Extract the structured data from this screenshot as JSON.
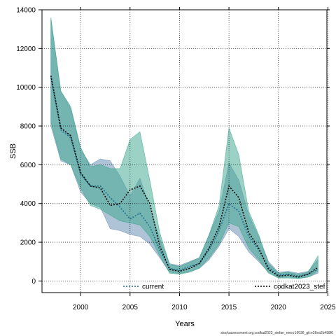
{
  "chart_data": {
    "type": "line",
    "xlabel": "Years",
    "ylabel": "SSB",
    "xlim": [
      1996.1,
      2024.9
    ],
    "ylim": [
      -600,
      14000
    ],
    "xticks": [
      2000,
      2005,
      2010,
      2015,
      2020,
      2025
    ],
    "yticks": [
      0,
      2000,
      4000,
      6000,
      8000,
      10000,
      12000,
      14000
    ],
    "grid": true,
    "legend_position": "bottom",
    "series": [
      {
        "name": "current",
        "color": "#1f6f8b",
        "band_color": "#6b91b5",
        "band_opacity": 0.55,
        "x": [
          1997,
          1998,
          1999,
          2000,
          2001,
          2002,
          2003,
          2004,
          2005,
          2006,
          2007,
          2008,
          2009,
          2010,
          2011,
          2012,
          2013,
          2014,
          2015,
          2016,
          2017,
          2018,
          2019,
          2020,
          2021,
          2022,
          2023,
          2024
        ],
        "y": [
          10500,
          7800,
          7400,
          5500,
          4900,
          4900,
          4300,
          3800,
          3200,
          3500,
          2800,
          1600,
          650,
          550,
          750,
          900,
          1600,
          2600,
          4000,
          3600,
          2300,
          1600,
          700,
          300,
          350,
          250,
          350,
          600
        ],
        "lower": [
          8000,
          6200,
          6000,
          4600,
          4000,
          3800,
          2700,
          2600,
          2400,
          2300,
          1900,
          1200,
          450,
          380,
          500,
          650,
          1100,
          1800,
          2700,
          2300,
          1500,
          1000,
          450,
          180,
          200,
          150,
          200,
          400
        ],
        "upper": [
          13500,
          9800,
          8900,
          6800,
          6000,
          6300,
          6200,
          5400,
          4400,
          5300,
          3800,
          2200,
          900,
          800,
          1000,
          1200,
          2400,
          3600,
          6100,
          5200,
          3400,
          2300,
          1000,
          450,
          500,
          400,
          500,
          1100
        ]
      },
      {
        "name": "codkat2023_stef",
        "color": "#000000",
        "band_color": "#3aa68c",
        "band_opacity": 0.5,
        "x": [
          1997,
          1998,
          1999,
          2000,
          2001,
          2002,
          2003,
          2004,
          2005,
          2006,
          2007,
          2008,
          2009,
          2010,
          2011,
          2012,
          2013,
          2014,
          2015,
          2016,
          2017,
          2018,
          2019,
          2020,
          2021,
          2022,
          2023,
          2024
        ],
        "y": [
          10600,
          7900,
          7500,
          5600,
          4900,
          4800,
          3900,
          4000,
          4700,
          4900,
          4000,
          1800,
          600,
          500,
          650,
          900,
          1700,
          2800,
          4900,
          4300,
          2500,
          1700,
          600,
          250,
          300,
          200,
          350,
          700
        ],
        "lower": [
          8200,
          6300,
          6000,
          4800,
          3900,
          3700,
          3400,
          3100,
          3000,
          2900,
          2300,
          1300,
          400,
          350,
          450,
          650,
          1200,
          1900,
          3000,
          2800,
          1700,
          1100,
          400,
          150,
          150,
          120,
          200,
          500
        ],
        "upper": [
          13600,
          9800,
          9000,
          6900,
          5900,
          6000,
          5800,
          5800,
          7300,
          7700,
          5200,
          2500,
          850,
          750,
          950,
          1200,
          2400,
          3900,
          7900,
          6500,
          3600,
          2400,
          900,
          400,
          450,
          350,
          450,
          1300
        ]
      }
    ]
  },
  "credit": "stockassessment.org,codkat2023_stefan_new,r16036_git:e36ea2b498f0"
}
